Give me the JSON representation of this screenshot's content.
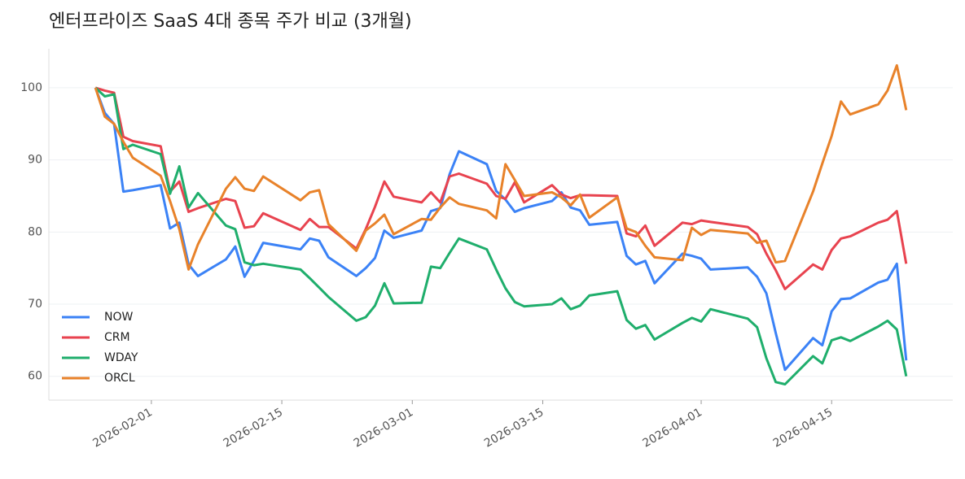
{
  "chart_data": {
    "type": "line",
    "title": "엔터프라이즈 SaaS 4대 종목 주가 비교 (3개월)",
    "x": [
      "2026-01-26",
      "2026-01-27",
      "2026-01-28",
      "2026-01-29",
      "2026-01-30",
      "2026-02-02",
      "2026-02-03",
      "2026-02-04",
      "2026-02-05",
      "2026-02-06",
      "2026-02-09",
      "2026-02-10",
      "2026-02-11",
      "2026-02-12",
      "2026-02-13",
      "2026-02-17",
      "2026-02-18",
      "2026-02-19",
      "2026-02-20",
      "2026-02-23",
      "2026-02-24",
      "2026-02-25",
      "2026-02-26",
      "2026-02-27",
      "2026-03-02",
      "2026-03-03",
      "2026-03-04",
      "2026-03-05",
      "2026-03-06",
      "2026-03-09",
      "2026-03-10",
      "2026-03-11",
      "2026-03-12",
      "2026-03-13",
      "2026-03-16",
      "2026-03-17",
      "2026-03-18",
      "2026-03-19",
      "2026-03-20",
      "2026-03-23",
      "2026-03-24",
      "2026-03-25",
      "2026-03-26",
      "2026-03-27",
      "2026-03-30",
      "2026-03-31",
      "2026-04-01",
      "2026-04-02",
      "2026-04-06",
      "2026-04-07",
      "2026-04-08",
      "2026-04-09",
      "2026-04-10",
      "2026-04-13",
      "2026-04-14",
      "2026-04-15",
      "2026-04-16",
      "2026-04-17",
      "2026-04-20",
      "2026-04-21",
      "2026-04-22",
      "2026-04-23"
    ],
    "series": [
      {
        "name": "NOW",
        "color": "#3b82f6",
        "values": [
          100,
          96.5,
          95,
          85.6,
          85.8,
          86.5,
          80.5,
          81.3,
          75.5,
          73.9,
          76.2,
          78,
          73.8,
          76,
          78.5,
          77.6,
          79.1,
          78.8,
          76.5,
          73.9,
          75,
          76.4,
          80.2,
          79.2,
          80.2,
          82.9,
          83.3,
          88,
          91.2,
          89.4,
          85.7,
          84.5,
          82.8,
          83.3,
          84.3,
          85.5,
          83.4,
          83,
          81,
          81.4,
          76.7,
          75.5,
          76,
          72.9,
          77,
          76.7,
          76.3,
          74.8,
          75.1,
          73.8,
          71.5,
          66,
          60.9,
          65.3,
          64.3,
          69,
          70.7,
          70.8,
          73,
          73.4,
          75.6,
          62.2
        ]
      },
      {
        "name": "CRM",
        "color": "#e8434f",
        "values": [
          100,
          99.6,
          99.3,
          93.2,
          92.6,
          91.9,
          85.6,
          87,
          82.8,
          83.3,
          84.6,
          84.3,
          80.6,
          80.8,
          82.6,
          80.3,
          81.8,
          80.7,
          80.7,
          77.7,
          80.4,
          83.5,
          87,
          84.9,
          84.1,
          85.5,
          84.1,
          87.7,
          88.1,
          86.7,
          85,
          84.6,
          86.9,
          84.1,
          86.5,
          85.2,
          84.7,
          85.1,
          85.1,
          85,
          79.8,
          79.4,
          80.9,
          78.1,
          81.3,
          81.1,
          81.6,
          81.4,
          80.7,
          79.7,
          77,
          74.7,
          72.1,
          75.5,
          74.8,
          77.5,
          79.1,
          79.4,
          81.3,
          81.7,
          82.9,
          75.6
        ]
      },
      {
        "name": "WDAY",
        "color": "#1fae6c",
        "values": [
          100,
          98.8,
          99.1,
          91.5,
          92.1,
          90.8,
          85.3,
          89.1,
          83.4,
          85.4,
          80.9,
          80.4,
          75.8,
          75.4,
          75.6,
          74.8,
          73.6,
          72.3,
          71,
          67.7,
          68.2,
          69.8,
          72.9,
          70.1,
          70.2,
          75.2,
          75,
          77.1,
          79.1,
          77.6,
          74.8,
          72.2,
          70.3,
          69.7,
          70,
          70.8,
          69.3,
          69.8,
          71.2,
          71.8,
          67.8,
          66.6,
          67.1,
          65.1,
          67.4,
          68.1,
          67.6,
          69.3,
          68,
          66.8,
          62.5,
          59.2,
          58.9,
          62.8,
          61.8,
          65,
          65.4,
          64.9,
          66.9,
          67.7,
          66.5,
          60
        ]
      },
      {
        "name": "ORCL",
        "color": "#e8822a",
        "values": [
          100,
          96,
          95,
          92.5,
          90.3,
          87.8,
          84.3,
          80.4,
          74.8,
          78.3,
          86,
          87.6,
          86,
          85.7,
          87.7,
          84.4,
          85.5,
          85.8,
          81.1,
          77.4,
          80.2,
          81.2,
          82.4,
          79.7,
          81.8,
          81.7,
          83.4,
          84.8,
          83.9,
          83,
          81.9,
          89.4,
          87.2,
          85,
          85.5,
          84.8,
          83.7,
          85.2,
          82,
          84.8,
          80.5,
          80,
          78.1,
          76.5,
          76.1,
          80.6,
          79.6,
          80.3,
          79.8,
          78.5,
          78.8,
          75.8,
          76,
          85.6,
          89.5,
          93.3,
          98.1,
          96.3,
          97.7,
          99.6,
          103.1,
          96.9
        ]
      }
    ],
    "xlim": [
      "2026-01-21",
      "2026-04-28"
    ],
    "xticks": [
      "2026-02-01",
      "2026-02-15",
      "2026-03-01",
      "2026-03-15",
      "2026-04-01",
      "2026-04-15"
    ],
    "ylim": [
      56.7,
      105.4
    ],
    "yticks": [
      60,
      70,
      80,
      90,
      100
    ],
    "grid": true,
    "legend": "lower-left"
  }
}
